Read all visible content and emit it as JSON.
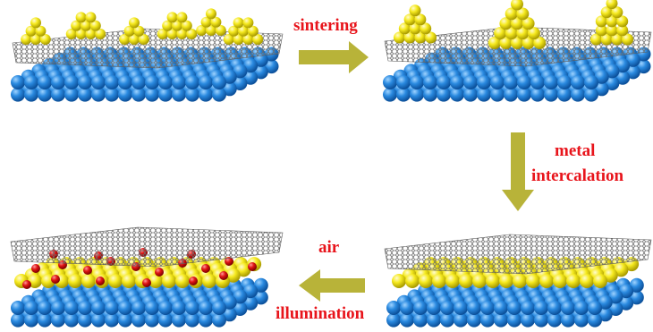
{
  "labels": {
    "sintering": "sintering",
    "metal": "metal",
    "intercalation": "intercalation",
    "air": "air",
    "illumination": "illumination"
  },
  "colors": {
    "substrate": "#1f7fd1",
    "metal": "#f5ea1e",
    "oxygen": "#e31414",
    "graphene": "#7a7a7a",
    "arrow": "#b8b339",
    "label": "#e8141b"
  },
  "panels": [
    {
      "stage": "small metal clusters on graphene / substrate"
    },
    {
      "stage": "sintered metal clusters on graphene / substrate"
    },
    {
      "stage": "intercalated metal layer under graphene"
    },
    {
      "stage": "oxidized intercalated layer under graphene"
    }
  ]
}
